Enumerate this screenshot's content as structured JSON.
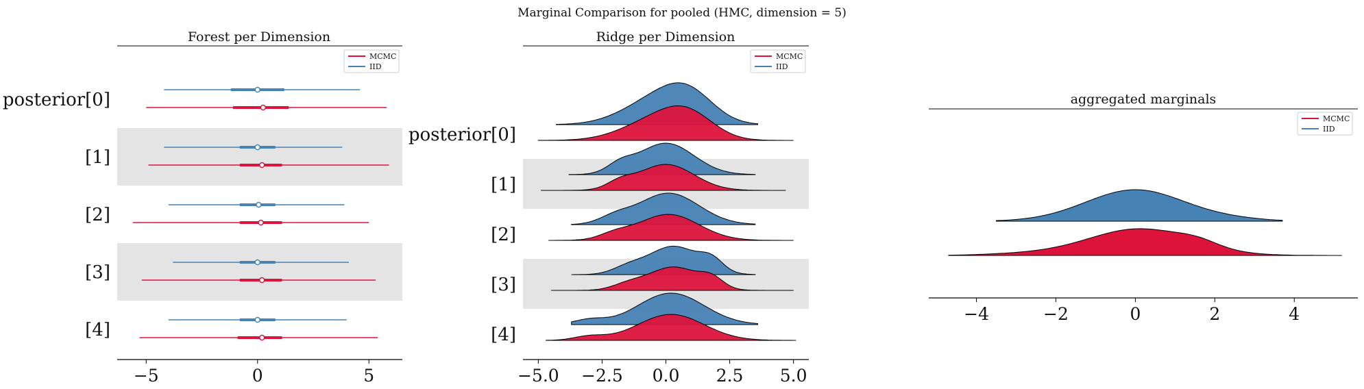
{
  "suptitle": "Marginal Comparison for pooled (HMC, dimension = 5)",
  "colors": {
    "MCMC": "#dc143c",
    "IID": "#4682b4",
    "band": "#e4e4e4",
    "axis": "#000000"
  },
  "chart_data": [
    {
      "type": "forest",
      "title": "Forest per Dimension",
      "xlim": [
        -6.3,
        6.5
      ],
      "xticks": [
        -5,
        0,
        5
      ],
      "xtick_labels": [
        "−5",
        "0",
        "5"
      ],
      "ylabels": [
        "posterior[0]",
        "[1]",
        "[2]",
        "[3]",
        "[4]"
      ],
      "legend": [
        "MCMC",
        "IID"
      ],
      "legend_placement": "top-right",
      "series": [
        {
          "name": "MCMC",
          "rows": [
            {
              "min": -5.0,
              "q1": -1.1,
              "median": 0.25,
              "q3": 1.4,
              "max": 5.8
            },
            {
              "min": -4.9,
              "q1": -0.8,
              "median": 0.2,
              "q3": 1.1,
              "max": 5.9
            },
            {
              "min": -5.6,
              "q1": -0.8,
              "median": 0.15,
              "q3": 1.1,
              "max": 5.0
            },
            {
              "min": -5.2,
              "q1": -0.8,
              "median": 0.2,
              "q3": 1.1,
              "max": 5.3
            },
            {
              "min": -5.3,
              "q1": -0.9,
              "median": 0.2,
              "q3": 1.1,
              "max": 5.4
            }
          ]
        },
        {
          "name": "IID",
          "rows": [
            {
              "min": -4.2,
              "q1": -1.2,
              "median": 0.0,
              "q3": 1.2,
              "max": 4.6
            },
            {
              "min": -4.2,
              "q1": -0.8,
              "median": 0.0,
              "q3": 0.8,
              "max": 3.8
            },
            {
              "min": -4.0,
              "q1": -0.8,
              "median": 0.05,
              "q3": 0.8,
              "max": 3.9
            },
            {
              "min": -3.8,
              "q1": -0.8,
              "median": 0.0,
              "q3": 0.8,
              "max": 4.1
            },
            {
              "min": -4.0,
              "q1": -0.8,
              "median": 0.0,
              "q3": 0.8,
              "max": 4.0
            }
          ]
        }
      ]
    },
    {
      "type": "ridge",
      "title": "Ridge per Dimension",
      "xlim": [
        -5.6,
        5.6
      ],
      "xticks": [
        -5.0,
        -2.5,
        0.0,
        2.5,
        5.0
      ],
      "xtick_labels": [
        "−5.0",
        "−2.5",
        "0.0",
        "2.5",
        "5.0"
      ],
      "ylabels": [
        "posterior[0]",
        "[1]",
        "[2]",
        "[3]",
        "[4]"
      ],
      "legend": [
        "MCMC",
        "IID"
      ],
      "legend_placement": "top-right",
      "ranges": {
        "IID": [
          [
            -4.3,
            3.6
          ],
          [
            -3.8,
            3.5
          ],
          [
            -3.7,
            3.5
          ],
          [
            -3.7,
            3.5
          ],
          [
            -3.7,
            3.6
          ]
        ],
        "MCMC": [
          [
            -5.0,
            5.0
          ],
          [
            -4.9,
            4.7
          ],
          [
            -4.6,
            5.0
          ],
          [
            -4.5,
            5.0
          ],
          [
            -4.7,
            5.1
          ]
        ]
      }
    },
    {
      "type": "ridge",
      "title": "aggregated marginals",
      "xlim": [
        -5.2,
        5.6
      ],
      "xticks": [
        -4,
        -2,
        0,
        2,
        4
      ],
      "xtick_labels": [
        "−4",
        "−2",
        "0",
        "2",
        "4"
      ],
      "legend": [
        "MCMC",
        "IID"
      ],
      "legend_placement": "top-right",
      "ranges": {
        "IID": [
          -3.5,
          3.7
        ],
        "MCMC": [
          -4.7,
          5.2
        ]
      }
    }
  ]
}
